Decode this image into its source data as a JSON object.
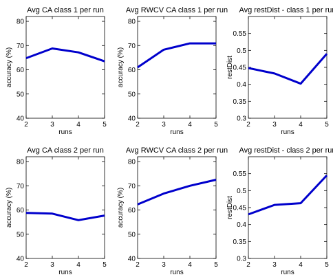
{
  "style": {
    "line_color": "#0000cc",
    "axes_color": "#000000",
    "background": "#ffffff"
  },
  "chart_data": [
    {
      "type": "line",
      "title": "Avg CA class 1 per run",
      "xlabel": "runs",
      "ylabel": "accuracy (%)",
      "xlim": [
        2,
        5
      ],
      "ylim": [
        40,
        82
      ],
      "xticks": [
        "2",
        "3",
        "4",
        "5"
      ],
      "yticks": [
        "40",
        "50",
        "60",
        "70",
        "80"
      ],
      "x": [
        2,
        3,
        4,
        5
      ],
      "y": [
        64.8,
        68.8,
        67.2,
        63.5
      ]
    },
    {
      "type": "line",
      "title": "Avg RWCV CA class 1 per run",
      "xlabel": "runs",
      "ylabel": "accuracy (%)",
      "xlim": [
        2,
        5
      ],
      "ylim": [
        40,
        82
      ],
      "xticks": [
        "2",
        "3",
        "4",
        "5"
      ],
      "yticks": [
        "40",
        "50",
        "60",
        "70",
        "80"
      ],
      "x": [
        2,
        3,
        4,
        5
      ],
      "y": [
        61.0,
        68.3,
        70.9,
        70.9
      ]
    },
    {
      "type": "line",
      "title": "Avg restDist - class 1 per run",
      "xlabel": "runs",
      "ylabel": "restDist",
      "xlim": [
        2,
        5
      ],
      "ylim": [
        0.3,
        0.6
      ],
      "xticks": [
        "2",
        "3",
        "4",
        "5"
      ],
      "yticks": [
        "0.3",
        "0.35",
        "0.4",
        "0.45",
        "0.5",
        "0.55"
      ],
      "x": [
        2,
        3,
        4,
        5
      ],
      "y": [
        0.448,
        0.432,
        0.402,
        0.49
      ]
    },
    {
      "type": "line",
      "title": "Avg CA class 2 per run",
      "xlabel": "runs",
      "ylabel": "accuracy (%)",
      "xlim": [
        2,
        5
      ],
      "ylim": [
        40,
        82
      ],
      "xticks": [
        "2",
        "3",
        "4",
        "5"
      ],
      "yticks": [
        "40",
        "50",
        "60",
        "70",
        "80"
      ],
      "x": [
        2,
        3,
        4,
        5
      ],
      "y": [
        58.8,
        58.5,
        55.8,
        57.7
      ]
    },
    {
      "type": "line",
      "title": "Avg RWCV CA class 2 per run",
      "xlabel": "runs",
      "ylabel": "accuracy (%)",
      "xlim": [
        2,
        5
      ],
      "ylim": [
        40,
        82
      ],
      "xticks": [
        "2",
        "3",
        "4",
        "5"
      ],
      "yticks": [
        "40",
        "50",
        "60",
        "70",
        "80"
      ],
      "x": [
        2,
        3,
        4,
        5
      ],
      "y": [
        62.3,
        66.8,
        70.0,
        72.5
      ]
    },
    {
      "type": "line",
      "title": "Avg restDist - class 2 per run",
      "xlabel": "runs",
      "ylabel": "restDist",
      "xlim": [
        2,
        5
      ],
      "ylim": [
        0.3,
        0.6
      ],
      "xticks": [
        "2",
        "3",
        "4",
        "5"
      ],
      "yticks": [
        "0.3",
        "0.35",
        "0.4",
        "0.45",
        "0.5",
        "0.55"
      ],
      "x": [
        2,
        3,
        4,
        5
      ],
      "y": [
        0.43,
        0.458,
        0.463,
        0.545
      ]
    }
  ]
}
